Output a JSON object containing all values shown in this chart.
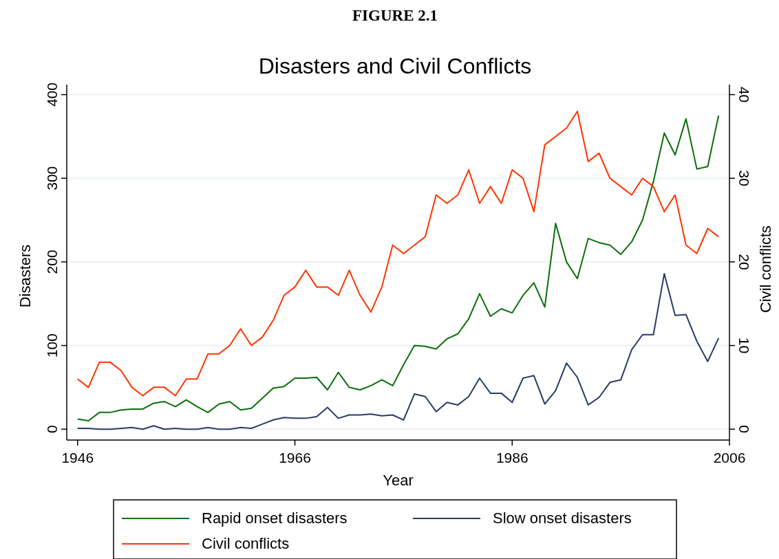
{
  "chart_data": {
    "type": "line",
    "title": "Disasters and Civil Conflicts",
    "annotations": [
      "FIGURE 2.1"
    ],
    "xlabel": "Year",
    "ylabel": "Disasters",
    "y2label": "Civil conflicts",
    "x": [
      1946,
      1947,
      1948,
      1949,
      1950,
      1951,
      1952,
      1953,
      1954,
      1955,
      1956,
      1957,
      1958,
      1959,
      1960,
      1961,
      1962,
      1963,
      1964,
      1965,
      1966,
      1967,
      1968,
      1969,
      1970,
      1971,
      1972,
      1973,
      1974,
      1975,
      1976,
      1977,
      1978,
      1979,
      1980,
      1981,
      1982,
      1983,
      1984,
      1985,
      1986,
      1987,
      1988,
      1989,
      1990,
      1991,
      1992,
      1993,
      1994,
      1995,
      1996,
      1997,
      1998,
      1999,
      2000,
      2001,
      2002,
      2003,
      2004,
      2005
    ],
    "xlim": [
      1945,
      2006
    ],
    "xticks": [
      1946,
      1966,
      1986,
      2006
    ],
    "ylim": [
      -13,
      412
    ],
    "yticks": [
      0,
      100,
      200,
      300,
      400
    ],
    "y2lim": [
      -1.3,
      41.2
    ],
    "y2ticks": [
      0,
      10,
      20,
      30,
      40
    ],
    "grid": "y",
    "legend": "bottom",
    "line_style": "solid",
    "series": [
      {
        "name": "Rapid onset disasters",
        "color": "#0a6e0a",
        "values": [
          12,
          10,
          20,
          20,
          23,
          24,
          24,
          31,
          33,
          27,
          35,
          27,
          20,
          30,
          33,
          23,
          25,
          37,
          49,
          51,
          61,
          61,
          62,
          47,
          68,
          50,
          47,
          52,
          59,
          52,
          77,
          100,
          99,
          96,
          108,
          114,
          132,
          162,
          135,
          144,
          139,
          160,
          175,
          146,
          246,
          200,
          180,
          228,
          223,
          220,
          209,
          224,
          250,
          296,
          354,
          328,
          371,
          311,
          314,
          375
        ]
      },
      {
        "name": "Slow onset disasters",
        "color": "#2a3a64",
        "values": [
          1,
          1,
          0,
          0,
          1,
          2,
          0,
          4,
          0,
          1,
          0,
          0,
          2,
          0,
          0,
          2,
          1,
          6,
          11,
          14,
          13,
          13,
          15,
          26,
          13,
          17,
          17,
          18,
          16,
          17,
          11,
          42,
          39,
          21,
          32,
          29,
          39,
          61,
          43,
          43,
          32,
          61,
          64,
          30,
          46,
          79,
          62,
          29,
          38,
          56,
          59,
          95,
          113,
          113,
          186,
          136,
          137,
          105,
          81,
          109
        ]
      },
      {
        "name": "Civil conflicts",
        "color": "#ff3300",
        "axis": "y2",
        "values": [
          6,
          5,
          8,
          8,
          7,
          5,
          4,
          5,
          5,
          4,
          6,
          6,
          9,
          9,
          10,
          12,
          10,
          11,
          13,
          16,
          17,
          19,
          17,
          17,
          16,
          19,
          16,
          14,
          17,
          22,
          21,
          22,
          23,
          28,
          27,
          28,
          31,
          27,
          29,
          27,
          31,
          30,
          26,
          34,
          35,
          36,
          38,
          32,
          33,
          30,
          29,
          28,
          30,
          29,
          26,
          28,
          22,
          21,
          24,
          23
        ]
      }
    ]
  }
}
